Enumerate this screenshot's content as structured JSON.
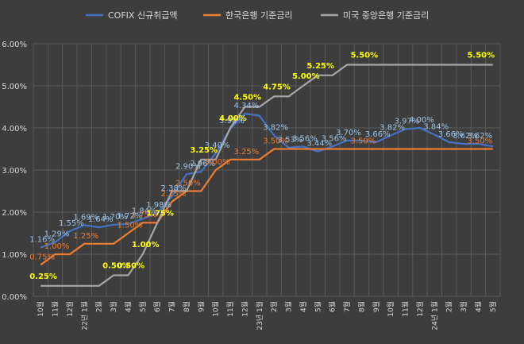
{
  "chart_data": {
    "type": "line",
    "ylim": [
      0,
      6
    ],
    "yticks": [
      "0.00%",
      "1.00%",
      "2.00%",
      "3.00%",
      "4.00%",
      "5.00%",
      "6.00%"
    ],
    "grid": true,
    "legend_placement": "top-center",
    "categories": [
      "10월",
      "11월",
      "12월",
      "22년 1월",
      "2월",
      "3월",
      "4월",
      "5월",
      "6월",
      "7월",
      "8월",
      "9월",
      "10월",
      "11월",
      "12월",
      "23년 1월",
      "2월",
      "3월",
      "4월",
      "5월",
      "6월",
      "7월",
      "8월",
      "9월",
      "10월",
      "11월",
      "12월",
      "24년 1월",
      "2월",
      "3월",
      "4월",
      "5월"
    ],
    "series": [
      {
        "name": "COFIX 신규취급액",
        "color": "#4472c4",
        "values": [
          1.16,
          1.29,
          1.55,
          1.69,
          1.64,
          1.7,
          1.72,
          1.84,
          1.98,
          2.38,
          2.9,
          2.96,
          3.4,
          3.98,
          4.34,
          4.29,
          3.82,
          3.53,
          3.56,
          3.44,
          3.56,
          3.7,
          3.7,
          3.66,
          3.82,
          3.97,
          4.0,
          3.84,
          3.66,
          3.62,
          3.62,
          3.56
        ],
        "labels": [
          "1.16%",
          "1.29%",
          "1.55%",
          "1.69%",
          "1.64%",
          "1.70%",
          "1.72%",
          "1.84%",
          "1.98%",
          "2.38%",
          "2.90%",
          "2.96%",
          "3.40%",
          "3.98%",
          "4.34%",
          "",
          "3.82%",
          "3.53%",
          "3.56%",
          "3.44%",
          "3.56%",
          "3.70%",
          "",
          "3.66%",
          "3.82%",
          "3.97%",
          "4.00%",
          "3.84%",
          "3.66%",
          "3.62%",
          "3.62%",
          ""
        ],
        "label_color": "#9dc3e6"
      },
      {
        "name": "한국은행 기준금리",
        "color": "#ed7d31",
        "values": [
          0.75,
          1.0,
          1.0,
          1.25,
          1.25,
          1.25,
          1.5,
          1.75,
          1.75,
          2.25,
          2.5,
          2.5,
          3.0,
          3.25,
          3.25,
          3.25,
          3.5,
          3.5,
          3.5,
          3.5,
          3.5,
          3.5,
          3.5,
          3.5,
          3.5,
          3.5,
          3.5,
          3.5,
          3.5,
          3.5,
          3.5,
          3.5
        ],
        "labels": [
          "0.75%",
          "1.00%",
          "",
          "1.25%",
          "",
          "",
          "1.50%",
          "1.75%",
          "",
          "2.25%",
          "2.50%",
          "",
          "3.00%",
          "",
          "3.25%",
          "",
          "3.50%",
          "",
          "",
          "",
          "",
          "",
          "3.50%",
          "",
          "",
          "",
          "",
          "",
          "",
          "",
          "3.50%",
          ""
        ],
        "label_color": "#ed7d31"
      },
      {
        "name": "미국 중앙은행 기준금리",
        "color": "#a6a6a6",
        "values": [
          0.25,
          0.25,
          0.25,
          0.25,
          0.25,
          0.5,
          0.5,
          1.0,
          1.75,
          2.5,
          2.5,
          3.25,
          3.25,
          4.0,
          4.5,
          4.5,
          4.75,
          4.75,
          5.0,
          5.25,
          5.25,
          5.5,
          5.5,
          5.5,
          5.5,
          5.5,
          5.5,
          5.5,
          5.5,
          5.5,
          5.5,
          5.5
        ],
        "labels": [
          "0.25%",
          "",
          "",
          "",
          "",
          "0.50%",
          "0.50%",
          "1.00%",
          "1.75%",
          "",
          "",
          "3.25%",
          "",
          "4.00%",
          "4.50%",
          "",
          "4.75%",
          "",
          "5.00%",
          "5.25%",
          "",
          "",
          "5.50%",
          "",
          "",
          "",
          "",
          "",
          "",
          "",
          "5.50%",
          ""
        ],
        "label_color": "#ffff00"
      }
    ]
  }
}
